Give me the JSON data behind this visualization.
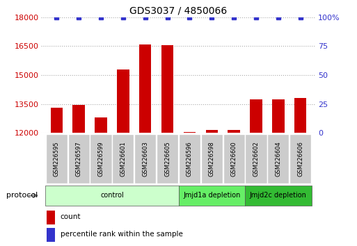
{
  "title": "GDS3037 / 4850066",
  "samples": [
    "GSM226595",
    "GSM226597",
    "GSM226599",
    "GSM226601",
    "GSM226603",
    "GSM226605",
    "GSM226596",
    "GSM226598",
    "GSM226600",
    "GSM226602",
    "GSM226604",
    "GSM226606"
  ],
  "counts": [
    13300,
    13450,
    12800,
    15300,
    16600,
    16550,
    12050,
    12150,
    12150,
    13750,
    13750,
    13800
  ],
  "ylim_left": [
    12000,
    18000
  ],
  "ylim_right": [
    0,
    100
  ],
  "yticks_left": [
    12000,
    13500,
    15000,
    16500,
    18000
  ],
  "yticks_right": [
    0,
    25,
    50,
    75,
    100
  ],
  "bar_color": "#cc0000",
  "dot_color": "#3333cc",
  "groups": [
    {
      "label": "control",
      "start": 0,
      "end": 5,
      "color": "#ccffcc"
    },
    {
      "label": "Jmjd1a depletion",
      "start": 6,
      "end": 8,
      "color": "#66ee66"
    },
    {
      "label": "Jmjd2c depletion",
      "start": 9,
      "end": 11,
      "color": "#33bb33"
    }
  ],
  "protocol_label": "protocol",
  "legend_count_label": "count",
  "legend_pct_label": "percentile rank within the sample",
  "grid_color": "#aaaaaa",
  "tick_label_color_left": "#cc0000",
  "tick_label_color_right": "#3333cc",
  "sample_box_color": "#cccccc",
  "bar_width": 0.55
}
